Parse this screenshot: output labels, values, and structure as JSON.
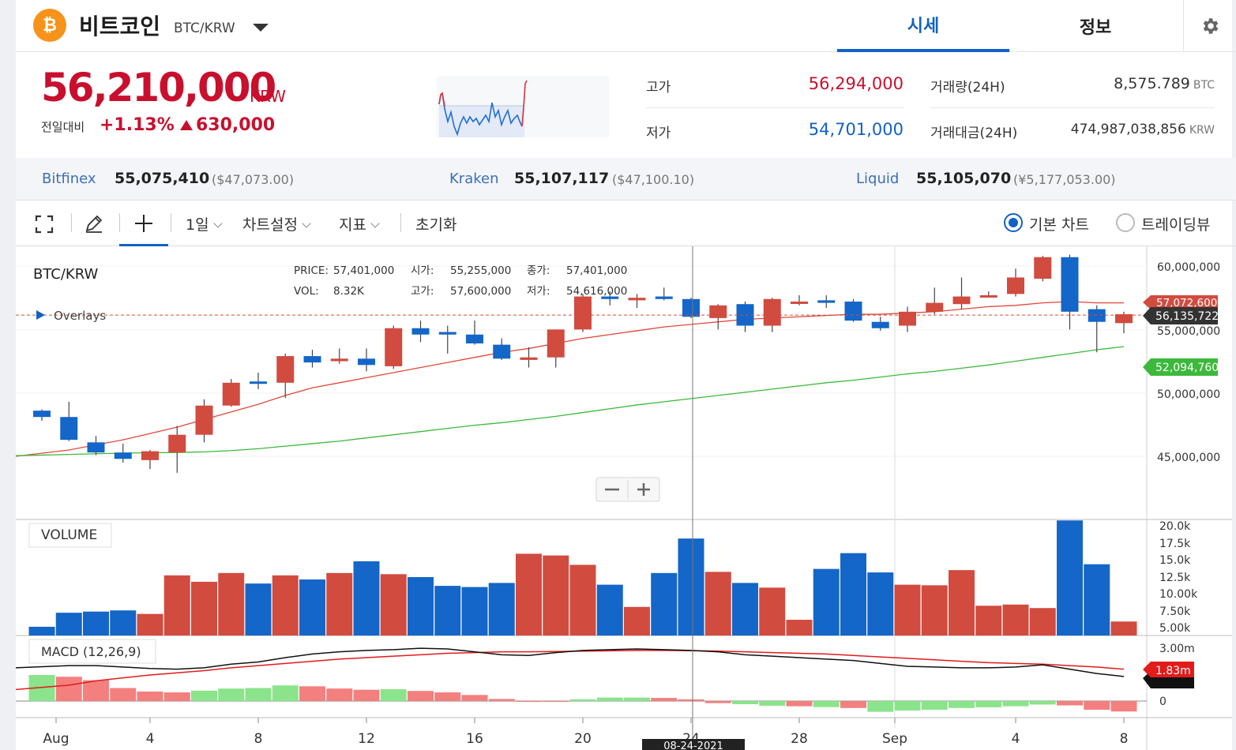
{
  "header": {
    "coin_symbol": "₿",
    "coin_name": "비트코인",
    "pair": "BTC/KRW",
    "tabs": [
      {
        "label": "시세",
        "active": true
      },
      {
        "label": "정보",
        "active": false
      }
    ]
  },
  "summary": {
    "price": "56,210,000",
    "unit": "KRW",
    "change_label": "전일대비",
    "change_pct": "+1.13%",
    "change_amount": "630,000",
    "high_label": "고가",
    "high": "56,294,000",
    "low_label": "저가",
    "low": "54,701,000",
    "volume_label": "거래량(24H)",
    "volume": "8,575.789",
    "volume_unit": "BTC",
    "value_label": "거래대금(24H)",
    "value": "474,987,038,856",
    "value_unit": "KRW"
  },
  "exchanges": [
    {
      "name": "Bitfinex",
      "price": "55,075,410",
      "usd": "($47,073.00)"
    },
    {
      "name": "Kraken",
      "price": "55,107,117",
      "usd": "($47,100.10)"
    },
    {
      "name": "Liquid",
      "price": "55,105,070",
      "usd": "(¥5,177,053.00)"
    }
  ],
  "toolbar": {
    "interval": "1일",
    "settings": "차트설정",
    "indicators": "지표",
    "reset": "초기화",
    "basic_chart": "기본 차트",
    "tradingview": "트레이딩뷰"
  },
  "colors": {
    "up": "#d14b3f",
    "down": "#1466c8",
    "ma_short": "#e0483a",
    "ma_long": "#3cb93c",
    "accent": "#1261c4"
  },
  "chart_data": {
    "type": "candlestick",
    "symbol": "BTC/KRW",
    "legend": {
      "price_label": "PRICE:",
      "price": "57,401,000",
      "vol_label": "VOL:",
      "vol": "8.32K",
      "open_label": "시가:",
      "open": "55,255,000",
      "close_label": "종가:",
      "close": "57,401,000",
      "high_label": "고가:",
      "high": "57,600,000",
      "low_label": "저가:",
      "low": "54,616,000"
    },
    "overlays_label": "Overlays",
    "volume_label": "VOLUME",
    "macd_label": "MACD (12,26,9)",
    "crosshair_date": "08-24-2021",
    "price_axis": [
      "60,000,000",
      "55,000,000",
      "50,000,000",
      "45,000,000"
    ],
    "volume_axis": [
      "20.0k",
      "17.5k",
      "15.0k",
      "12.5k",
      "10.00k",
      "7.50k",
      "5.00k"
    ],
    "macd_axis": [
      "3.00m",
      "0"
    ],
    "x_ticks": [
      "Aug",
      "4",
      "8",
      "12",
      "16",
      "20",
      "24",
      "28",
      "Sep",
      "4",
      "8"
    ],
    "price_tags": [
      {
        "value": "57,072,600",
        "kind": "ma_short"
      },
      {
        "value": "56,135,722",
        "kind": "current"
      },
      {
        "value": "52,094,760",
        "kind": "ma_long"
      }
    ],
    "macd_tag": "1.83m",
    "candles": [
      {
        "o": 48600000,
        "c": 48100000,
        "h": 48700000,
        "l": 47800000
      },
      {
        "o": 48100000,
        "c": 46300000,
        "h": 49300000,
        "l": 46200000
      },
      {
        "o": 46100000,
        "c": 45300000,
        "h": 46600000,
        "l": 45100000
      },
      {
        "o": 45300000,
        "c": 44800000,
        "h": 46000000,
        "l": 44500000
      },
      {
        "o": 44700000,
        "c": 45400000,
        "h": 45500000,
        "l": 44000000
      },
      {
        "o": 45300000,
        "c": 46700000,
        "h": 47400000,
        "l": 43700000
      },
      {
        "o": 46700000,
        "c": 49000000,
        "h": 49500000,
        "l": 46100000
      },
      {
        "o": 49000000,
        "c": 50800000,
        "h": 51100000,
        "l": 48900000
      },
      {
        "o": 50900000,
        "c": 50800000,
        "h": 51600000,
        "l": 50300000
      },
      {
        "o": 50800000,
        "c": 52900000,
        "h": 53100000,
        "l": 49600000
      },
      {
        "o": 52900000,
        "c": 52400000,
        "h": 53400000,
        "l": 52000000
      },
      {
        "o": 52500000,
        "c": 52700000,
        "h": 53500000,
        "l": 52300000
      },
      {
        "o": 52700000,
        "c": 52200000,
        "h": 53500000,
        "l": 51700000
      },
      {
        "o": 52100000,
        "c": 55100000,
        "h": 55300000,
        "l": 51900000
      },
      {
        "o": 55100000,
        "c": 54600000,
        "h": 55700000,
        "l": 54000000
      },
      {
        "o": 54800000,
        "c": 54600000,
        "h": 55300000,
        "l": 53100000
      },
      {
        "o": 54600000,
        "c": 53900000,
        "h": 55700000,
        "l": 53800000
      },
      {
        "o": 53800000,
        "c": 52700000,
        "h": 54300000,
        "l": 52600000
      },
      {
        "o": 52600000,
        "c": 52800000,
        "h": 53600000,
        "l": 52000000
      },
      {
        "o": 52800000,
        "c": 55000000,
        "h": 55000000,
        "l": 52000000
      },
      {
        "o": 55000000,
        "c": 57600000,
        "h": 57800000,
        "l": 54800000
      },
      {
        "o": 57600000,
        "c": 57400000,
        "h": 58000000,
        "l": 56900000
      },
      {
        "o": 57300000,
        "c": 57500000,
        "h": 57800000,
        "l": 56700000
      },
      {
        "o": 57600000,
        "c": 57400000,
        "h": 58300000,
        "l": 57300000
      },
      {
        "o": 57400000,
        "c": 56000000,
        "h": 57500000,
        "l": 55900000
      },
      {
        "o": 55900000,
        "c": 56900000,
        "h": 57000000,
        "l": 55000000
      },
      {
        "o": 57000000,
        "c": 55300000,
        "h": 57200000,
        "l": 54800000
      },
      {
        "o": 55300000,
        "c": 57400000,
        "h": 57500000,
        "l": 54800000
      },
      {
        "o": 57200000,
        "c": 57200000,
        "h": 57700000,
        "l": 56900000
      },
      {
        "o": 57300000,
        "c": 57100000,
        "h": 57700000,
        "l": 56700000
      },
      {
        "o": 57200000,
        "c": 55700000,
        "h": 57400000,
        "l": 55600000
      },
      {
        "o": 55600000,
        "c": 55100000,
        "h": 56000000,
        "l": 54900000
      },
      {
        "o": 55300000,
        "c": 56400000,
        "h": 56800000,
        "l": 54800000
      },
      {
        "o": 56400000,
        "c": 57100000,
        "h": 58300000,
        "l": 56200000
      },
      {
        "o": 57000000,
        "c": 57600000,
        "h": 59100000,
        "l": 56600000
      },
      {
        "o": 57600000,
        "c": 57700000,
        "h": 58000000,
        "l": 57500000
      },
      {
        "o": 57800000,
        "c": 59100000,
        "h": 59800000,
        "l": 57600000
      },
      {
        "o": 59000000,
        "c": 60700000,
        "h": 60800000,
        "l": 58800000
      },
      {
        "o": 60700000,
        "c": 56400000,
        "h": 60900000,
        "l": 55000000
      },
      {
        "o": 56600000,
        "c": 55600000,
        "h": 56900000,
        "l": 53200000
      },
      {
        "o": 55500000,
        "c": 56200000,
        "h": 56400000,
        "l": 54700000
      }
    ],
    "ma_short": [
      45000000,
      45500000,
      45900000,
      46300000,
      46800000,
      47300000,
      47900000,
      48500000,
      49100000,
      49800000,
      50400000,
      50800000,
      51200000,
      51600000,
      52000000,
      52400000,
      52800000,
      53200000,
      53500000,
      53900000,
      54300000,
      54600000,
      54900000,
      55200000,
      55400000,
      55600000,
      55800000,
      55900000,
      56000000,
      56100000,
      56200000,
      56200000,
      56300000,
      56400000,
      56600000,
      56800000,
      56900000,
      57100000,
      57200000,
      57100000,
      57100000
    ],
    "ma_long": [
      45050000,
      45150000,
      45200000,
      45250000,
      45280000,
      45300000,
      45350000,
      45450000,
      45600000,
      45800000,
      46000000,
      46200000,
      46450000,
      46700000,
      46950000,
      47200000,
      47450000,
      47650000,
      47900000,
      48150000,
      48450000,
      48750000,
      49050000,
      49300000,
      49550000,
      49800000,
      50050000,
      50300000,
      50550000,
      50800000,
      51000000,
      51250000,
      51500000,
      51700000,
      51950000,
      52200000,
      52500000,
      52800000,
      53100000,
      53400000,
      53650000
    ],
    "volume": [
      1500,
      3900,
      4100,
      4300,
      3700,
      10300,
      9200,
      10700,
      8900,
      10300,
      9600,
      10700,
      12700,
      10500,
      10000,
      8500,
      8300,
      9000,
      14000,
      13700,
      12100,
      8700,
      4900,
      10700,
      16600,
      10900,
      9000,
      8200,
      2700,
      11400,
      14100,
      10800,
      8700,
      8600,
      11200,
      5100,
      5300,
      4700,
      19700,
      12200,
      2400
    ],
    "macd_hist": [
      1.5,
      1.4,
      1.2,
      0.75,
      0.55,
      0.5,
      0.6,
      0.72,
      0.75,
      0.9,
      0.85,
      0.72,
      0.65,
      0.68,
      0.58,
      0.5,
      0.35,
      0.12,
      -0.05,
      0,
      0.1,
      0.2,
      0.2,
      0.18,
      0.1,
      -0.12,
      -0.18,
      -0.27,
      -0.3,
      -0.35,
      -0.4,
      -0.62,
      -0.55,
      -0.5,
      -0.4,
      -0.36,
      -0.3,
      -0.2,
      -0.25,
      -0.5,
      -0.6
    ],
    "macd_line": [
      2.3,
      2.45,
      2.45,
      2.35,
      2.25,
      2.2,
      2.3,
      2.55,
      2.7,
      3.0,
      3.25,
      3.4,
      3.5,
      3.55,
      3.65,
      3.6,
      3.4,
      3.2,
      3.15,
      3.35,
      3.5,
      3.55,
      3.6,
      3.55,
      3.5,
      3.4,
      3.2,
      3.1,
      3.0,
      2.9,
      2.8,
      2.6,
      2.4,
      2.35,
      2.3,
      2.3,
      2.35,
      2.5,
      2.2,
      1.9,
      1.7
    ],
    "signal_line": [
      0.8,
      1.1,
      1.4,
      1.6,
      1.8,
      1.95,
      2.1,
      2.3,
      2.45,
      2.6,
      2.75,
      2.9,
      3.0,
      3.1,
      3.2,
      3.3,
      3.35,
      3.4,
      3.4,
      3.42,
      3.45,
      3.47,
      3.5,
      3.5,
      3.48,
      3.45,
      3.4,
      3.35,
      3.3,
      3.25,
      3.15,
      3.05,
      2.95,
      2.85,
      2.75,
      2.65,
      2.6,
      2.55,
      2.45,
      2.35,
      2.2
    ]
  }
}
